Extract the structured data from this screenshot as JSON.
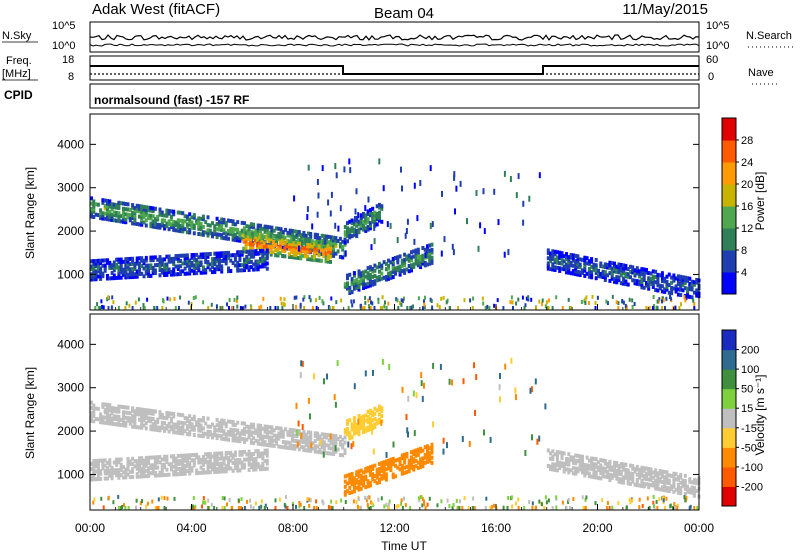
{
  "header": {
    "station": "Adak West (fitACF)",
    "beam": "Beam 04",
    "date": "11/May/2015"
  },
  "top_strip": {
    "nsky_label": "N.Sky",
    "nsearch_label": "N.Search",
    "nsky_tick_hi": "10^5",
    "nsky_tick_lo": "10^0",
    "freq_label_1": "Freq.",
    "freq_label_2": "[MHz]",
    "nave_label": "Nave",
    "cpid_label": "CPID",
    "cpid_text": "normalsound (fast) -157 RF",
    "freq_ticks": [
      "18",
      "8"
    ],
    "nave_ticks": [
      "60",
      "0"
    ]
  },
  "power_colorbar": {
    "label": "Power [dB]",
    "ticks": [
      "28",
      "24",
      "20",
      "16",
      "12",
      "8",
      "4"
    ],
    "colors": [
      "#0000ff",
      "#1f3fb0",
      "#2f7f57",
      "#4fa84f",
      "#c8b400",
      "#ff9a00",
      "#ff5a00",
      "#e00000"
    ]
  },
  "velocity_colorbar": {
    "label": "Velocity [m s⁻¹]",
    "ticks": [
      "200",
      "100",
      "50",
      "15",
      "-15",
      "-50",
      "-100",
      "-200"
    ],
    "colors": [
      "#1a2bbf",
      "#2f6a8f",
      "#3f8f3f",
      "#7fd03f",
      "#bfbfbf",
      "#ffcc33",
      "#ff8a00",
      "#ff5a00",
      "#e00000"
    ]
  },
  "x_axis": {
    "label": "Time UT",
    "ticks": [
      "00:00",
      "04:00",
      "08:00",
      "12:00",
      "16:00",
      "20:00",
      "00:00"
    ]
  },
  "chart_data": [
    {
      "type": "heatmap",
      "title": "",
      "xlabel": "Time UT",
      "ylabel": "Slant Range [km]",
      "xlim_hours": [
        0,
        24
      ],
      "ylim": [
        180,
        4700
      ],
      "yticks": [
        1000,
        2000,
        3000,
        4000
      ],
      "colorbar_label": "Power [dB]",
      "colorbar_range": [
        0,
        32
      ],
      "features": [
        {
          "t": [
            0.0,
            10.0
          ],
          "range_km": [
            2600,
            1650
          ],
          "value_db": 14
        },
        {
          "t": [
            6.0,
            9.5
          ],
          "range_km": [
            1800,
            1550
          ],
          "value_db": 27
        },
        {
          "t": [
            0.0,
            7.0
          ],
          "range_km": [
            1150,
            1400
          ],
          "value_db": 8
        },
        {
          "t": [
            10.0,
            13.5
          ],
          "range_km": [
            800,
            1550
          ],
          "value_db": 12
        },
        {
          "t": [
            10.0,
            11.5
          ],
          "range_km": [
            2000,
            2500
          ],
          "value_db": 12
        },
        {
          "t": [
            18.0,
            24.0
          ],
          "range_km": [
            1400,
            700
          ],
          "value_db": 8
        }
      ]
    },
    {
      "type": "heatmap",
      "title": "",
      "xlabel": "Time UT",
      "ylabel": "Slant Range [km]",
      "xlim_hours": [
        0,
        24
      ],
      "ylim": [
        180,
        4700
      ],
      "yticks": [
        1000,
        2000,
        3000,
        4000
      ],
      "colorbar_label": "Velocity [m s⁻¹]",
      "colorbar_range": [
        -200,
        200
      ],
      "features": [
        {
          "t": [
            0.0,
            10.0
          ],
          "range_km": [
            2500,
            1700
          ],
          "velocity": 0
        },
        {
          "t": [
            0.0,
            7.0
          ],
          "range_km": [
            1150,
            1400
          ],
          "velocity": 0
        },
        {
          "t": [
            10.0,
            13.5
          ],
          "range_km": [
            800,
            1550
          ],
          "velocity": -75
        },
        {
          "t": [
            10.0,
            11.5
          ],
          "range_km": [
            2050,
            2450
          ],
          "velocity": -30
        },
        {
          "t": [
            18.0,
            24.0
          ],
          "range_km": [
            1400,
            750
          ],
          "velocity": 0
        }
      ]
    }
  ]
}
